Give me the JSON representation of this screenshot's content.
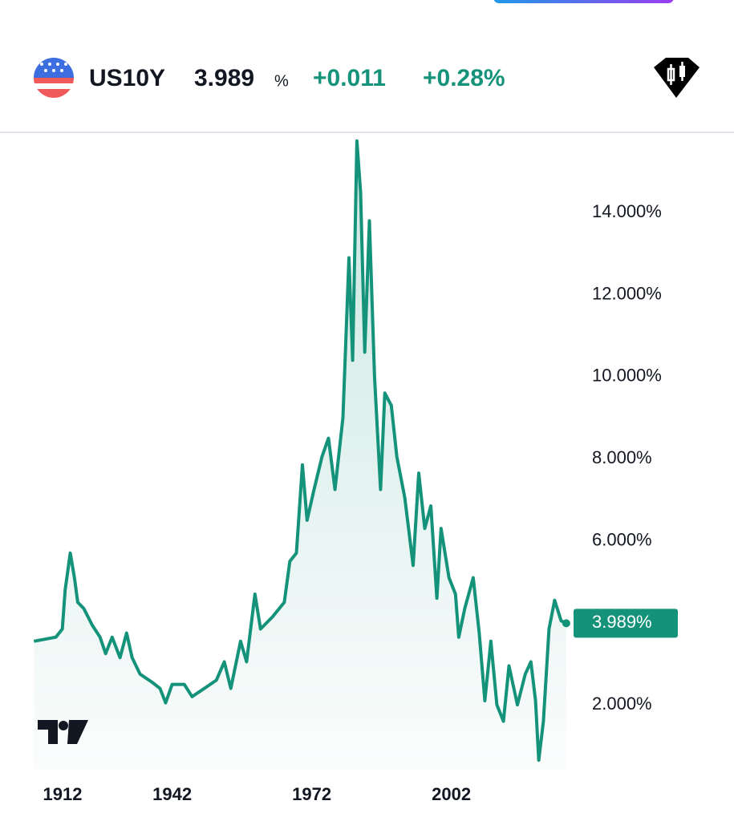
{
  "header": {
    "symbol": "US10Y",
    "price": "3.989",
    "unit": "%",
    "change": "+0.011",
    "change_percent": "+0.28%"
  },
  "chart_data": {
    "type": "line",
    "color": "#14937a",
    "x": [
      1912.3,
      1917,
      1918.4,
      1919,
      1920.1,
      1921,
      1921.7,
      1923,
      1924.8,
      1926.5,
      1927.7,
      1929.1,
      1930.8,
      1932.2,
      1933.4,
      1935.1,
      1937.7,
      1939.4,
      1940.6,
      1942,
      1944.6,
      1946.3,
      1948.9,
      1951.5,
      1953.2,
      1954.6,
      1956.7,
      1958,
      1959.8,
      1961,
      1963.6,
      1966.1,
      1967.3,
      1968.7,
      1970,
      1971,
      1972.5,
      1974.2,
      1975.6,
      1977,
      1978.7,
      1980,
      1980.8,
      1981.7,
      1982.5,
      1983.4,
      1984.4,
      1985.5,
      1986.8,
      1987.7,
      1989.1,
      1990.3,
      1992,
      1993.8,
      1995,
      1996.3,
      1997.6,
      1998.9,
      1999.8,
      2001.5,
      2002.9,
      2003.6,
      2004.9,
      2006.7,
      2008,
      2009.2,
      2010.5,
      2011.8,
      2013.2,
      2014.4,
      2016.2,
      2017.9,
      2019.1,
      2020.1,
      2020.8,
      2021.8,
      2023,
      2024.2,
      2025.6,
      2026.7
    ],
    "values": [
      3.55,
      3.65,
      3.85,
      4.8,
      5.7,
      5.1,
      4.5,
      4.35,
      3.95,
      3.65,
      3.25,
      3.65,
      3.15,
      3.75,
      3.15,
      2.75,
      2.55,
      2.4,
      2.05,
      2.5,
      2.5,
      2.2,
      2.4,
      2.6,
      3.05,
      2.4,
      3.55,
      3.05,
      4.7,
      3.85,
      4.15,
      4.5,
      5.5,
      5.7,
      7.85,
      6.5,
      7.25,
      8.05,
      8.5,
      7.25,
      9.0,
      12.9,
      10.4,
      15.75,
      14.5,
      10.6,
      13.8,
      10.0,
      7.25,
      9.6,
      9.3,
      8.05,
      7.05,
      5.4,
      7.65,
      6.3,
      6.85,
      4.6,
      6.3,
      5.1,
      4.7,
      3.65,
      4.35,
      5.1,
      3.75,
      2.1,
      3.55,
      2.0,
      1.6,
      2.95,
      2.0,
      2.75,
      3.05,
      2.1,
      0.65,
      1.6,
      3.85,
      4.55,
      4.05,
      3.989
    ],
    "xlim": [
      1905,
      2030
    ],
    "ylim": [
      0.4,
      15.9
    ],
    "xticks": [
      1912,
      1942,
      1972,
      2002
    ],
    "yticks": [
      {
        "value": 2,
        "label": "2.000%"
      },
      {
        "value": 6,
        "label": "6.000%"
      },
      {
        "value": 8,
        "label": "8.000%"
      },
      {
        "value": 10,
        "label": "10.000%"
      },
      {
        "value": 12,
        "label": "12.000%"
      },
      {
        "value": 14,
        "label": "14.000%"
      }
    ],
    "last_value": {
      "value": 3.989,
      "label": "3.989%"
    },
    "grid": false
  }
}
